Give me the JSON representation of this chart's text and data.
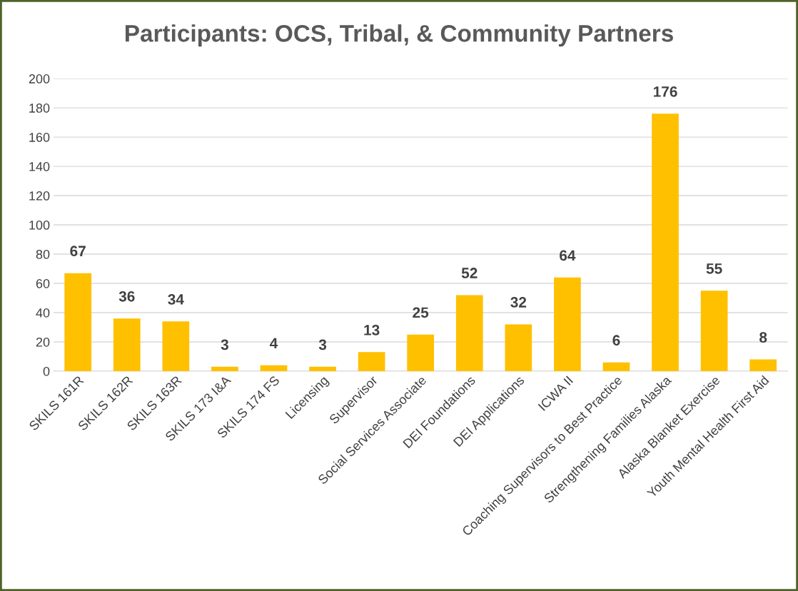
{
  "chart_data": {
    "type": "bar",
    "title": "Participants: OCS, Tribal, & Community Partners",
    "categories": [
      "SKILS 161R",
      "SKILS 162R",
      "SKILS 163R",
      "SKILS 173 I&A",
      "SKILS 174 FS",
      "Licensing",
      "Supervisor",
      "Social Services Associate",
      "DEI Foundations",
      "DEI Applications",
      "ICWA II",
      "Coaching Supervisors to Best Practice",
      "Strengthening Families Alaska",
      "Alaska Blanket Exercise",
      "Youth Mental Health First Aid"
    ],
    "values": [
      67,
      36,
      34,
      3,
      4,
      3,
      13,
      25,
      52,
      32,
      64,
      6,
      176,
      55,
      8
    ],
    "color": "#ffc000",
    "ylim": [
      0,
      200
    ],
    "yticks": [
      0,
      20,
      40,
      60,
      80,
      100,
      120,
      140,
      160,
      180,
      200
    ],
    "grid": "y",
    "data_labels": true,
    "legend": false
  }
}
